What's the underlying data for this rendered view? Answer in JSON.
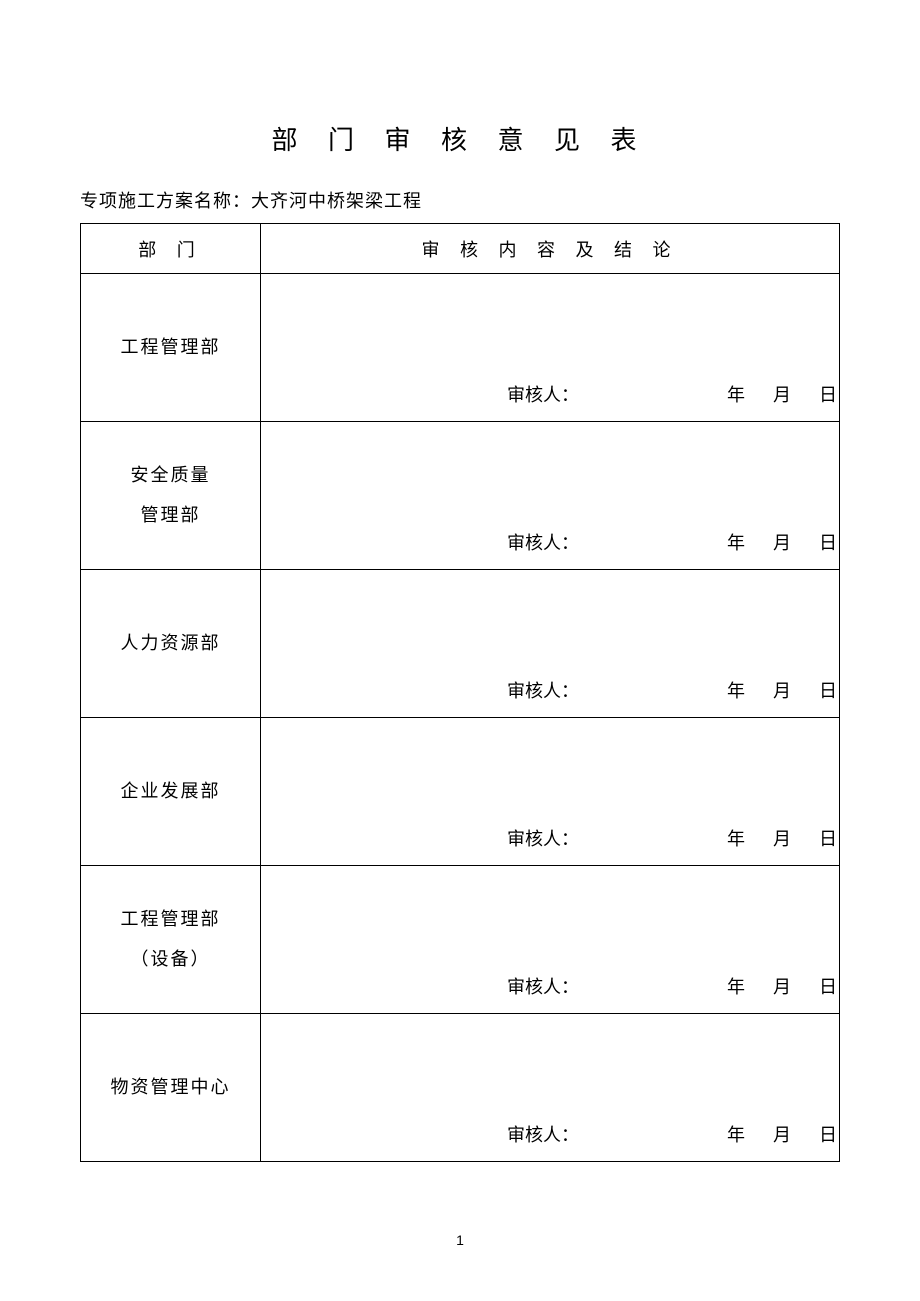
{
  "document": {
    "title": "部 门 审 核 意 见 表",
    "subtitle_prefix": "专项施工方案名称：",
    "subtitle_name": "大齐河中桥架梁工程",
    "page_number": "1"
  },
  "table": {
    "type": "table",
    "border_color": "#000000",
    "background_color": "#ffffff",
    "text_color": "#000000",
    "title_fontsize": 26,
    "body_fontsize": 18,
    "header": {
      "col1": "部 门",
      "col2": "审 核 内 容 及 结 论"
    },
    "signature": {
      "reviewer_label": "审核人：",
      "year_unit": "年",
      "month_unit": "月",
      "day_unit": "日"
    },
    "departments": [
      {
        "name": "工程管理部",
        "name2": ""
      },
      {
        "name": "安全质量",
        "name2": "管理部"
      },
      {
        "name": "人力资源部",
        "name2": ""
      },
      {
        "name": "企业发展部",
        "name2": ""
      },
      {
        "name": "工程管理部",
        "name2": "（设备）"
      },
      {
        "name": "物资管理中心",
        "name2": ""
      }
    ]
  }
}
